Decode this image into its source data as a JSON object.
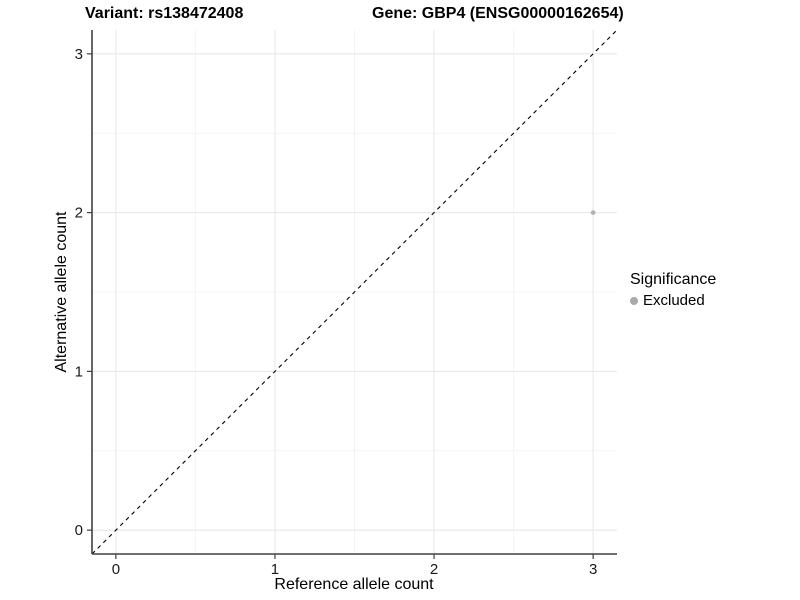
{
  "chart_data": {
    "type": "scatter",
    "titles": {
      "left": "Variant: rs138472408",
      "right": "Gene: GBP4 (ENSG00000162654)"
    },
    "xlabel": "Reference allele count",
    "ylabel": "Alternative allele count",
    "xlim": [
      -0.15,
      3.15
    ],
    "ylim": [
      -0.15,
      3.15
    ],
    "x_ticks": [
      0,
      1,
      2,
      3
    ],
    "y_ticks": [
      0,
      1,
      2,
      3
    ],
    "x_minor_ticks": [
      0.5,
      1.5,
      2.5
    ],
    "y_minor_ticks": [
      0.5,
      1.5,
      2.5
    ],
    "grid": "on",
    "reference_line": {
      "kind": "identity y=x",
      "style": "dashed",
      "color": "#000000"
    },
    "series": [
      {
        "name": "Excluded",
        "color": "#b3b3b3",
        "points": [
          [
            3,
            2
          ]
        ]
      }
    ],
    "legend": {
      "title": "Significance",
      "position": "right",
      "entries": [
        {
          "label": "Excluded",
          "color": "#aaaaaa"
        }
      ]
    },
    "colors": {
      "background": "#ffffff",
      "grid_major": "#e9e9e9",
      "grid_minor": "#f4f4f4",
      "axis_line": "#404040",
      "tick_text": "#1a1a1a"
    }
  }
}
